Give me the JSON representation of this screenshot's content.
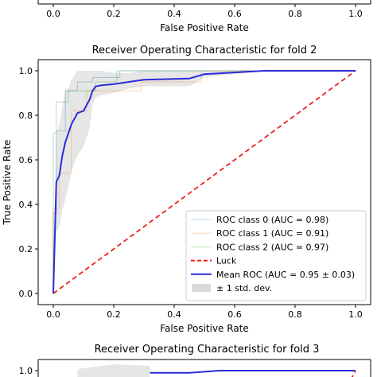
{
  "chart_data": [
    {
      "type": "line",
      "panel": "top (partially visible)",
      "title": "",
      "xlabel": "False Positive Rate",
      "ylabel": "",
      "xlim": [
        -0.05,
        1.05
      ],
      "xticks": [
        "0.0",
        "0.2",
        "0.4",
        "0.6",
        "0.8",
        "1.0"
      ],
      "xtick_values": [
        0.0,
        0.2,
        0.4,
        0.6,
        0.8,
        1.0
      ],
      "series": []
    },
    {
      "type": "line",
      "panel": "middle",
      "title": "Receiver Operating Characteristic for fold 2",
      "xlabel": "False Positive Rate",
      "ylabel": "True Positive Rate",
      "xlim": [
        -0.05,
        1.05
      ],
      "ylim": [
        -0.05,
        1.05
      ],
      "grid": false,
      "legend_position": "lower-right",
      "xticks": [
        "0.0",
        "0.2",
        "0.4",
        "0.6",
        "0.8",
        "1.0"
      ],
      "xtick_values": [
        0.0,
        0.2,
        0.4,
        0.6,
        0.8,
        1.0
      ],
      "yticks": [
        "0.0",
        "0.2",
        "0.4",
        "0.6",
        "0.8",
        "1.0"
      ],
      "ytick_values": [
        0.0,
        0.2,
        0.4,
        0.6,
        0.8,
        1.0
      ],
      "series": [
        {
          "name": "ROC class 0 (AUC = 0.98)",
          "color": "#1f77b4",
          "alpha": 0.3,
          "dash": "",
          "x": [
            0,
            0,
            0.01,
            0.01,
            0.04,
            0.04,
            0.08,
            0.08,
            0.13,
            0.13,
            0.22,
            0.22,
            1.0
          ],
          "y": [
            0,
            0.36,
            0.36,
            0.73,
            0.73,
            0.91,
            0.91,
            0.95,
            0.95,
            0.97,
            0.97,
            1.0,
            1.0
          ]
        },
        {
          "name": "ROC class 1 (AUC = 0.91)",
          "color": "#ff7f0e",
          "alpha": 0.3,
          "dash": "",
          "x": [
            0,
            0,
            0.02,
            0.02,
            0.06,
            0.06,
            0.11,
            0.11,
            0.29,
            0.29,
            0.49,
            0.49,
            1.0
          ],
          "y": [
            0,
            0.38,
            0.38,
            0.54,
            0.54,
            0.82,
            0.82,
            0.91,
            0.91,
            0.95,
            0.95,
            1.0,
            1.0
          ]
        },
        {
          "name": "ROC class 2 (AUC = 0.97)",
          "color": "#2ca02c",
          "alpha": 0.3,
          "dash": "",
          "x": [
            0,
            0,
            0.01,
            0.01,
            0.05,
            0.05,
            0.14,
            0.14,
            0.21,
            0.21,
            1.0
          ],
          "y": [
            0,
            0.72,
            0.72,
            0.86,
            0.86,
            0.91,
            0.91,
            0.95,
            0.95,
            1.0,
            1.0
          ]
        },
        {
          "name": "Luck",
          "color": "#e8221f",
          "alpha": 1,
          "dash": "6,4",
          "x": [
            0,
            1
          ],
          "y": [
            0,
            1
          ]
        },
        {
          "name": "Mean ROC (AUC = 0.95 ± 0.03)",
          "color": "#2a2bd9",
          "alpha": 1,
          "dash": "",
          "x": [
            0,
            0.01,
            0.02,
            0.03,
            0.04,
            0.05,
            0.06,
            0.08,
            0.1,
            0.12,
            0.13,
            0.14,
            0.16,
            0.2,
            0.25,
            0.3,
            0.45,
            0.5,
            0.7,
            1.0
          ],
          "y": [
            0,
            0.5,
            0.53,
            0.62,
            0.68,
            0.72,
            0.76,
            0.81,
            0.82,
            0.87,
            0.91,
            0.93,
            0.935,
            0.94,
            0.95,
            0.96,
            0.965,
            0.985,
            1.0,
            1.0
          ]
        }
      ],
      "band": {
        "name": "± 1 std. dev.",
        "color": "#808080",
        "alpha": 0.2,
        "x": [
          0,
          0.01,
          0.02,
          0.03,
          0.04,
          0.05,
          0.06,
          0.08,
          0.1,
          0.12,
          0.13,
          0.14,
          0.16,
          0.2,
          0.25,
          0.3,
          0.45,
          0.5,
          0.7,
          1.0
        ],
        "upper": [
          0,
          0.72,
          0.76,
          0.84,
          0.92,
          0.92,
          0.96,
          1.0,
          1.0,
          1.0,
          1.0,
          1.0,
          1.0,
          0.99,
          0.99,
          1.0,
          1.0,
          1.0,
          1.0,
          1.0
        ],
        "lower": [
          0,
          0.28,
          0.3,
          0.38,
          0.42,
          0.48,
          0.55,
          0.62,
          0.66,
          0.74,
          0.85,
          0.88,
          0.89,
          0.9,
          0.92,
          0.93,
          0.93,
          0.97,
          1.0,
          1.0
        ]
      }
    },
    {
      "type": "line",
      "panel": "bottom (partially visible)",
      "title": "Receiver Operating Characteristic for fold 3",
      "xlabel": "",
      "ylabel": "",
      "yticks": [
        "1.0"
      ],
      "ytick_values": [
        1.0
      ],
      "series": [
        {
          "name": "",
          "color": "#2a2bd9",
          "alpha": 1,
          "dash": "",
          "x": [
            0.32,
            0.45,
            0.55,
            0.75,
            0.95,
            1.0
          ],
          "y": [
            0.99,
            0.99,
            1.0,
            1.0,
            1.0,
            1.0
          ]
        }
      ]
    }
  ]
}
